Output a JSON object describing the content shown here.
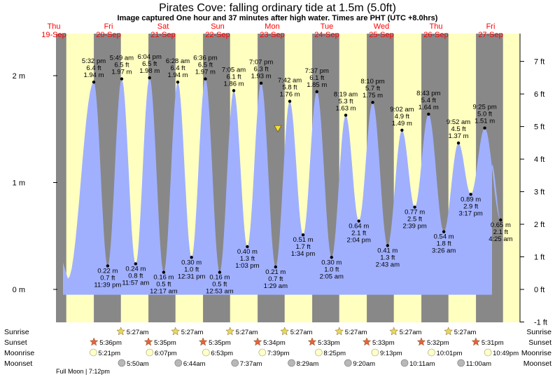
{
  "title": "Pirates Cove: falling  ordinary tide at 1.5m (5.0ft)",
  "subtitle": "Image captured One hour and 37 minutes after high water. Times are PHT (UTC +8.0hrs)",
  "colors": {
    "day": "#ffffc0",
    "night": "#888888",
    "tide": "#a0b0ff",
    "day_label": "#ff0000",
    "sun": "#e8d860",
    "sunset_star": "#e86040",
    "moon": "#ffffc8",
    "moonset": "#b8b8b8"
  },
  "chart_data": {
    "type": "area",
    "title": "Pirates Cove: falling  ordinary tide at 1.5m (5.0ft)",
    "left_axis": {
      "unit": "m",
      "ticks": [
        "0 m",
        "1 m",
        "2 m"
      ],
      "ylim": [
        -0.1,
        2.25
      ]
    },
    "right_axis": {
      "unit": "ft",
      "ticks": [
        "-1 ft",
        "0 ft",
        "1 ft",
        "2 ft",
        "3 ft",
        "4 ft",
        "5 ft",
        "6 ft",
        "7 ft"
      ]
    },
    "days": [
      {
        "dow": "Thu",
        "date": "19-Sep"
      },
      {
        "dow": "Fri",
        "date": "20-Sep"
      },
      {
        "dow": "Sat",
        "date": "21-Sep"
      },
      {
        "dow": "Sun",
        "date": "22-Sep"
      },
      {
        "dow": "Mon",
        "date": "23-Sep"
      },
      {
        "dow": "Tue",
        "date": "24-Sep"
      },
      {
        "dow": "Wed",
        "date": "25-Sep"
      },
      {
        "dow": "Thu",
        "date": "26-Sep"
      },
      {
        "dow": "Fri",
        "date": "27-Sep"
      }
    ],
    "series": [
      {
        "points": [
          {
            "type": "high",
            "time": "5:32 pm",
            "m": "1.94 m",
            "ft": "6.4 ft",
            "value": 1.94
          },
          {
            "type": "low",
            "time": "11:39 pm",
            "m": "0.22 m",
            "ft": "0.7 ft",
            "value": 0.22
          },
          {
            "type": "high",
            "time": "5:49 am",
            "m": "1.97 m",
            "ft": "6.5 ft",
            "value": 1.97
          },
          {
            "type": "low",
            "time": "11:57 am",
            "m": "0.24 m",
            "ft": "0.8 ft",
            "value": 0.24
          },
          {
            "type": "high",
            "time": "6:04 pm",
            "m": "1.98 m",
            "ft": "6.5 ft",
            "value": 1.98
          },
          {
            "type": "low",
            "time": "12:17 am",
            "m": "0.16 m",
            "ft": "0.5 ft",
            "value": 0.16
          },
          {
            "type": "high",
            "time": "6:28 am",
            "m": "1.94 m",
            "ft": "6.4 ft",
            "value": 1.94
          },
          {
            "type": "low",
            "time": "12:31 pm",
            "m": "0.30 m",
            "ft": "1.0 ft",
            "value": 0.3
          },
          {
            "type": "high",
            "time": "6:36 pm",
            "m": "1.97 m",
            "ft": "6.5 ft",
            "value": 1.97
          },
          {
            "type": "low",
            "time": "12:53 am",
            "m": "0.16 m",
            "ft": "0.5 ft",
            "value": 0.16
          },
          {
            "type": "high",
            "time": "7:05 am",
            "m": "1.86 m",
            "ft": "6.1 ft",
            "value": 1.86
          },
          {
            "type": "low",
            "time": "1:03 pm",
            "m": "0.40 m",
            "ft": "1.3 ft",
            "value": 0.4
          },
          {
            "type": "high",
            "time": "7:07 pm",
            "m": "1.93 m",
            "ft": "6.3 ft",
            "value": 1.93
          },
          {
            "type": "low",
            "time": "1:29 am",
            "m": "0.21 m",
            "ft": "0.7 ft",
            "value": 0.21
          },
          {
            "type": "high",
            "time": "7:42 am",
            "m": "1.76 m",
            "ft": "5.8 ft",
            "value": 1.76
          },
          {
            "type": "low",
            "time": "1:34 pm",
            "m": "0.51 m",
            "ft": "1.7 ft",
            "value": 0.51
          },
          {
            "type": "high",
            "time": "7:37 pm",
            "m": "1.85 m",
            "ft": "6.1 ft",
            "value": 1.85
          },
          {
            "type": "low",
            "time": "2:05 am",
            "m": "0.30 m",
            "ft": "1.0 ft",
            "value": 0.3
          },
          {
            "type": "high",
            "time": "8:19 am",
            "m": "1.63 m",
            "ft": "5.3 ft",
            "value": 1.63
          },
          {
            "type": "low",
            "time": "2:04 pm",
            "m": "0.64 m",
            "ft": "2.1 ft",
            "value": 0.64
          },
          {
            "type": "high",
            "time": "8:10 pm",
            "m": "1.75 m",
            "ft": "5.7 ft",
            "value": 1.75
          },
          {
            "type": "low",
            "time": "2:43 am",
            "m": "0.41 m",
            "ft": "1.3 ft",
            "value": 0.41
          },
          {
            "type": "high",
            "time": "9:02 am",
            "m": "1.49 m",
            "ft": "4.9 ft",
            "value": 1.49
          },
          {
            "type": "low",
            "time": "2:39 pm",
            "m": "0.77 m",
            "ft": "2.5 ft",
            "value": 0.77
          },
          {
            "type": "high",
            "time": "8:43 pm",
            "m": "1.64 m",
            "ft": "5.4 ft",
            "value": 1.64
          },
          {
            "type": "low",
            "time": "3:26 am",
            "m": "0.54 m",
            "ft": "1.8 ft",
            "value": 0.54
          },
          {
            "type": "high",
            "time": "9:52 am",
            "m": "1.37 m",
            "ft": "4.5 ft",
            "value": 1.37
          },
          {
            "type": "low",
            "time": "3:17 pm",
            "m": "0.89 m",
            "ft": "2.9 ft",
            "value": 0.89
          },
          {
            "type": "high",
            "time": "9:25 pm",
            "m": "1.51 m",
            "ft": "5.0 ft",
            "value": 1.51
          },
          {
            "type": "low",
            "time": "4:25 am",
            "m": "0.65 m",
            "ft": "2.1 ft",
            "value": 0.65
          }
        ]
      }
    ],
    "current_level": 1.5
  },
  "almanac": {
    "labels": {
      "sunrise": "Sunrise",
      "sunset": "Sunset",
      "moonrise": "Moonrise",
      "moonset": "Moonset"
    },
    "sunrise": [
      "5:27am",
      "5:27am",
      "5:27am",
      "5:27am",
      "5:27am",
      "5:27am",
      "5:27am"
    ],
    "sunset": [
      "5:36pm",
      "5:35pm",
      "5:35pm",
      "5:34pm",
      "5:33pm",
      "5:33pm",
      "5:32pm",
      "5:31pm"
    ],
    "moonrise": [
      "5:21pm",
      "6:07pm",
      "6:53pm",
      "7:39pm",
      "8:25pm",
      "9:13pm",
      "10:01pm",
      "10:49pm"
    ],
    "moonset": [
      "5:50am",
      "6:44am",
      "7:37am",
      "8:29am",
      "9:20am",
      "10:11am",
      "11:00am"
    ]
  },
  "moon_phase": "Full Moon | 7:12pm"
}
